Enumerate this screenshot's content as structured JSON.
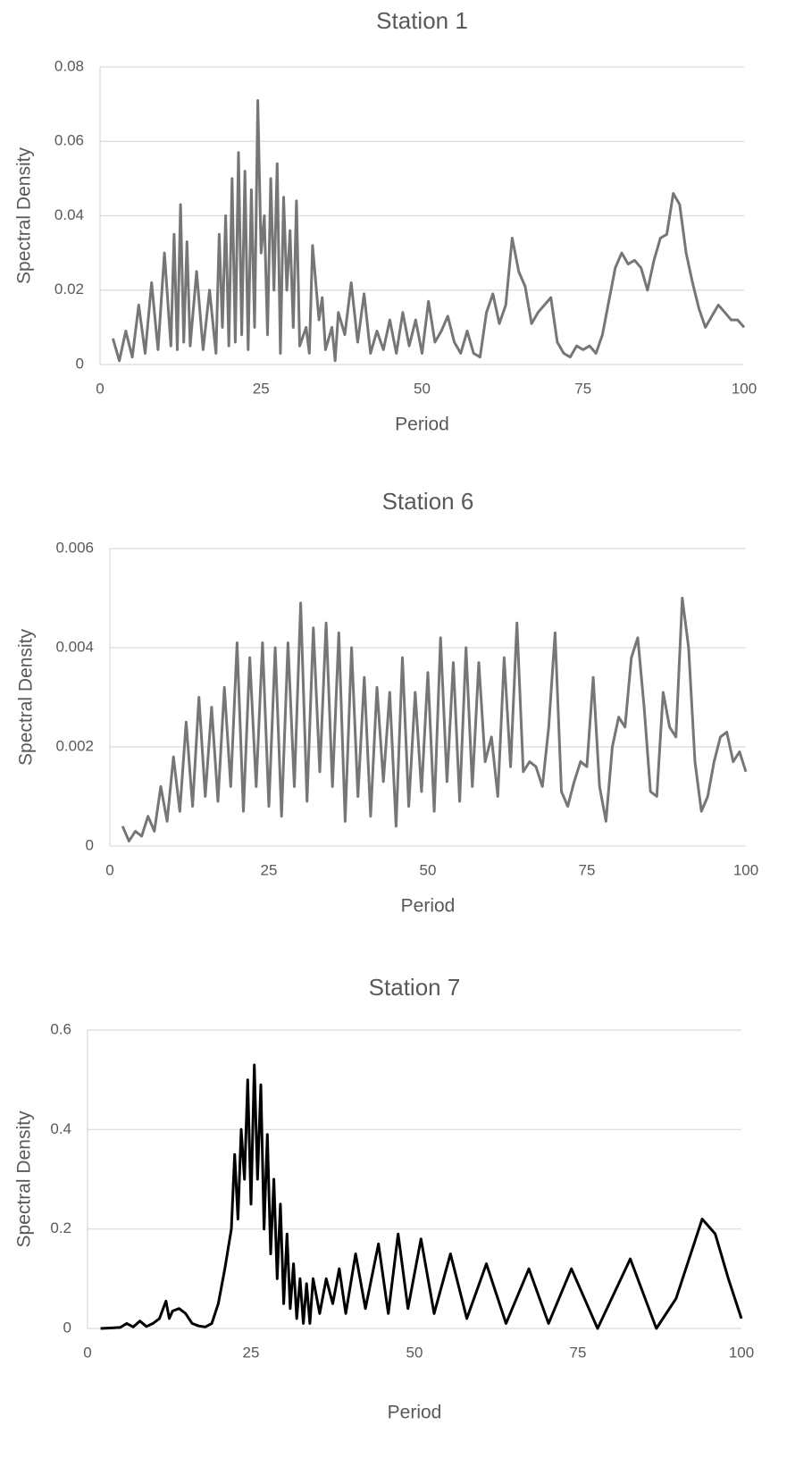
{
  "chart_data": [
    {
      "type": "line",
      "title": "Station 1",
      "x_label": "Period",
      "y_label": "Spectral Density",
      "xlim": [
        0,
        100
      ],
      "xticks": [
        0,
        25,
        50,
        75,
        100
      ],
      "ylim": [
        0,
        0.08
      ],
      "yticks": [
        0,
        0.02,
        0.04,
        0.06,
        0.08
      ],
      "grid": true,
      "x": [
        2,
        3,
        4,
        5,
        6,
        7,
        8,
        9,
        10,
        11,
        11.5,
        12,
        12.5,
        13,
        13.5,
        14,
        15,
        16,
        17,
        18,
        18.5,
        19,
        19.5,
        20,
        20.5,
        21,
        21.5,
        22,
        22.5,
        23,
        23.5,
        24,
        24.5,
        25,
        25.5,
        26,
        26.5,
        27,
        27.5,
        28,
        28.5,
        29,
        29.5,
        30,
        30.5,
        31,
        32,
        32.5,
        33,
        34,
        34.5,
        35,
        36,
        36.5,
        37,
        38,
        39,
        40,
        41,
        42,
        43,
        44,
        45,
        46,
        47,
        48,
        49,
        50,
        51,
        52,
        53,
        54,
        55,
        56,
        57,
        58,
        59,
        60,
        61,
        62,
        63,
        64,
        65,
        66,
        67,
        68,
        69,
        70,
        71,
        72,
        73,
        74,
        75,
        76,
        77,
        78,
        79,
        80,
        81,
        82,
        83,
        84,
        85,
        86,
        87,
        88,
        89,
        90,
        91,
        92,
        93,
        94,
        95,
        96,
        97,
        98,
        99,
        100
      ],
      "series": [
        {
          "color": "#767676",
          "values": [
            0.007,
            0.001,
            0.009,
            0.002,
            0.016,
            0.003,
            0.022,
            0.004,
            0.03,
            0.005,
            0.035,
            0.004,
            0.043,
            0.006,
            0.033,
            0.005,
            0.025,
            0.004,
            0.02,
            0.003,
            0.035,
            0.01,
            0.04,
            0.005,
            0.05,
            0.006,
            0.057,
            0.008,
            0.052,
            0.004,
            0.047,
            0.01,
            0.071,
            0.03,
            0.04,
            0.008,
            0.05,
            0.02,
            0.054,
            0.003,
            0.045,
            0.02,
            0.036,
            0.01,
            0.044,
            0.005,
            0.01,
            0.003,
            0.032,
            0.012,
            0.018,
            0.004,
            0.01,
            0.001,
            0.014,
            0.008,
            0.022,
            0.006,
            0.019,
            0.003,
            0.009,
            0.004,
            0.012,
            0.003,
            0.014,
            0.005,
            0.012,
            0.003,
            0.017,
            0.006,
            0.009,
            0.013,
            0.006,
            0.003,
            0.009,
            0.003,
            0.002,
            0.014,
            0.019,
            0.011,
            0.016,
            0.034,
            0.025,
            0.021,
            0.011,
            0.014,
            0.016,
            0.018,
            0.006,
            0.003,
            0.002,
            0.005,
            0.004,
            0.005,
            0.003,
            0.008,
            0.017,
            0.026,
            0.03,
            0.027,
            0.028,
            0.026,
            0.02,
            0.028,
            0.034,
            0.035,
            0.046,
            0.043,
            0.03,
            0.022,
            0.015,
            0.01,
            0.013,
            0.016,
            0.014,
            0.012,
            0.012,
            0.01
          ]
        }
      ]
    },
    {
      "type": "line",
      "title": "Station 6",
      "x_label": "Period",
      "y_label": "Spectral Density",
      "xlim": [
        0,
        100
      ],
      "xticks": [
        0,
        25,
        50,
        75,
        100
      ],
      "ylim": [
        0,
        0.006
      ],
      "yticks": [
        0,
        0.002,
        0.004,
        0.006
      ],
      "grid": true,
      "x": [
        2,
        3,
        4,
        5,
        6,
        7,
        8,
        9,
        10,
        11,
        12,
        13,
        14,
        15,
        16,
        17,
        18,
        19,
        20,
        21,
        22,
        23,
        24,
        25,
        26,
        27,
        28,
        29,
        30,
        31,
        32,
        33,
        34,
        35,
        36,
        37,
        38,
        39,
        40,
        41,
        42,
        43,
        44,
        45,
        46,
        47,
        48,
        49,
        50,
        51,
        52,
        53,
        54,
        55,
        56,
        57,
        58,
        59,
        60,
        61,
        62,
        63,
        64,
        65,
        66,
        67,
        68,
        69,
        70,
        71,
        72,
        73,
        74,
        75,
        76,
        77,
        78,
        79,
        80,
        81,
        82,
        83,
        84,
        85,
        86,
        87,
        88,
        89,
        90,
        91,
        92,
        93,
        94,
        95,
        96,
        97,
        98,
        99,
        100
      ],
      "series": [
        {
          "color": "#767676",
          "values": [
            0.0004,
            0.0001,
            0.0003,
            0.0002,
            0.0006,
            0.0003,
            0.0012,
            0.0005,
            0.0018,
            0.0007,
            0.0025,
            0.0008,
            0.003,
            0.001,
            0.0028,
            0.0009,
            0.0032,
            0.0012,
            0.0041,
            0.0007,
            0.0038,
            0.0012,
            0.0041,
            0.0008,
            0.004,
            0.0006,
            0.0041,
            0.0012,
            0.0049,
            0.0009,
            0.0044,
            0.0015,
            0.0045,
            0.0012,
            0.0043,
            0.0005,
            0.004,
            0.001,
            0.0034,
            0.0006,
            0.0032,
            0.0013,
            0.0031,
            0.0004,
            0.0038,
            0.0008,
            0.0031,
            0.0011,
            0.0035,
            0.0007,
            0.0042,
            0.0013,
            0.0037,
            0.0009,
            0.004,
            0.0012,
            0.0037,
            0.0017,
            0.0022,
            0.001,
            0.0038,
            0.0016,
            0.0045,
            0.0015,
            0.0017,
            0.0016,
            0.0012,
            0.0024,
            0.0043,
            0.0011,
            0.0008,
            0.0013,
            0.0017,
            0.0016,
            0.0034,
            0.0012,
            0.0005,
            0.002,
            0.0026,
            0.0024,
            0.0038,
            0.0042,
            0.0028,
            0.0011,
            0.001,
            0.0031,
            0.0024,
            0.0022,
            0.005,
            0.004,
            0.0017,
            0.0007,
            0.001,
            0.0017,
            0.0022,
            0.0023,
            0.0017,
            0.0019,
            0.0015
          ]
        }
      ]
    },
    {
      "type": "line",
      "title": "Station 7",
      "x_label": "Period",
      "y_label": "Spectral Density",
      "xlim": [
        0,
        100
      ],
      "xticks": [
        0,
        25,
        50,
        75,
        100
      ],
      "ylim": [
        0,
        0.6
      ],
      "yticks": [
        0,
        0.2,
        0.4,
        0.6
      ],
      "grid": true,
      "x": [
        2,
        5,
        6,
        7,
        8,
        9,
        10,
        11,
        12,
        12.5,
        13,
        14,
        15,
        16,
        17,
        18,
        19,
        20,
        21,
        22,
        22.5,
        23,
        23.5,
        24,
        24.5,
        25,
        25.5,
        26,
        26.5,
        27,
        27.5,
        28,
        28.5,
        29,
        29.5,
        30,
        30.5,
        31,
        31.5,
        32,
        32.5,
        33,
        33.5,
        34,
        34.5,
        35.5,
        36.5,
        37.5,
        38.5,
        39.5,
        41,
        42.5,
        44.5,
        46,
        47.5,
        49,
        51,
        53,
        55.5,
        58,
        61,
        64,
        67.5,
        70.5,
        74,
        78,
        83,
        87,
        90,
        94,
        96,
        98,
        100
      ],
      "series": [
        {
          "color": "#000000",
          "values": [
            0,
            0.002,
            0.01,
            0.003,
            0.015,
            0.004,
            0.01,
            0.02,
            0.055,
            0.02,
            0.035,
            0.04,
            0.03,
            0.01,
            0.005,
            0.003,
            0.01,
            0.05,
            0.12,
            0.2,
            0.35,
            0.22,
            0.4,
            0.3,
            0.5,
            0.25,
            0.53,
            0.3,
            0.49,
            0.2,
            0.39,
            0.15,
            0.3,
            0.1,
            0.25,
            0.05,
            0.19,
            0.04,
            0.13,
            0.02,
            0.1,
            0.01,
            0.09,
            0.01,
            0.1,
            0.03,
            0.1,
            0.05,
            0.12,
            0.03,
            0.15,
            0.04,
            0.17,
            0.03,
            0.19,
            0.04,
            0.18,
            0.03,
            0.15,
            0.02,
            0.13,
            0.01,
            0.12,
            0.01,
            0.12,
            0,
            0.14,
            0,
            0.06,
            0.22,
            0.19,
            0.1,
            0.02
          ]
        }
      ]
    }
  ]
}
